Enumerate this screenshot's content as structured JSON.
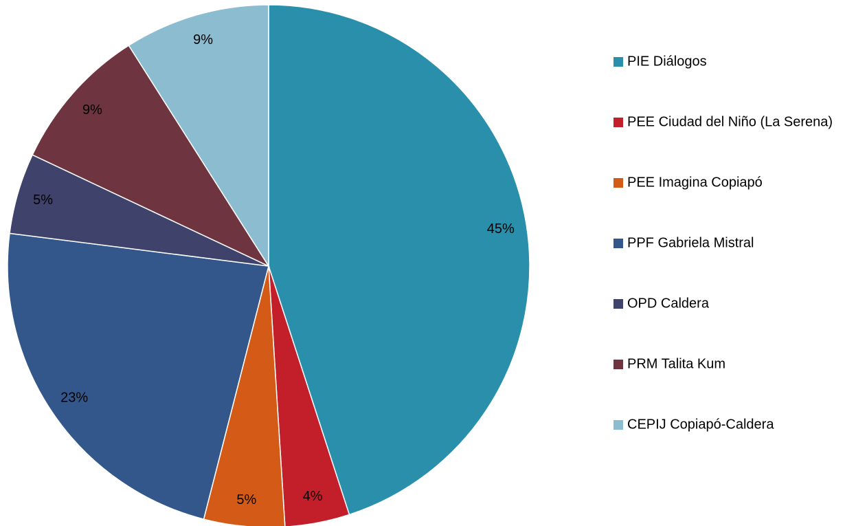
{
  "chart_data": {
    "type": "pie",
    "categories": [
      "PIE Diálogos",
      "PEE Ciudad del Niño (La Serena)",
      "PEE Imagina Copiapó",
      "PPF Gabriela Mistral",
      "OPD Caldera",
      "PRM Talita Kum",
      "CEPIJ Copiapó-Caldera"
    ],
    "values": [
      45,
      4,
      5,
      23,
      5,
      9,
      9
    ],
    "value_labels": [
      "45%",
      "4%",
      "5%",
      "23%",
      "5%",
      "9%",
      "9%"
    ],
    "colors": [
      "#2a8fab",
      "#c21f2a",
      "#d35a17",
      "#33578a",
      "#3f426b",
      "#6e3540",
      "#8bbccf"
    ],
    "legend": "right"
  }
}
